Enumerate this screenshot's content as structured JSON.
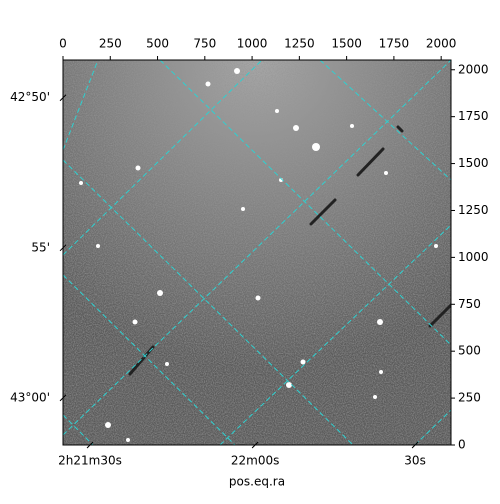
{
  "chart_data": {
    "type": "image",
    "xlabel": "pos.eq.ra",
    "xlim": [
      0,
      2052
    ],
    "ylim": [
      0,
      2052
    ],
    "xticks": [
      0,
      250,
      500,
      750,
      1000,
      1250,
      1500,
      1750,
      2000
    ],
    "yticks": [
      0,
      250,
      500,
      750,
      1000,
      1250,
      1500,
      1750,
      2000
    ],
    "world_xticks": [
      {
        "value": 143,
        "label": "2h21m30s"
      },
      {
        "value": 1016,
        "label": "22m00s"
      },
      {
        "value": 1862,
        "label": "30s"
      }
    ],
    "world_yticks": [
      {
        "value": 1851,
        "label": "42°50'"
      },
      {
        "value": 1051,
        "label": "55'"
      },
      {
        "value": 251,
        "label": "43°00'"
      }
    ]
  }
}
